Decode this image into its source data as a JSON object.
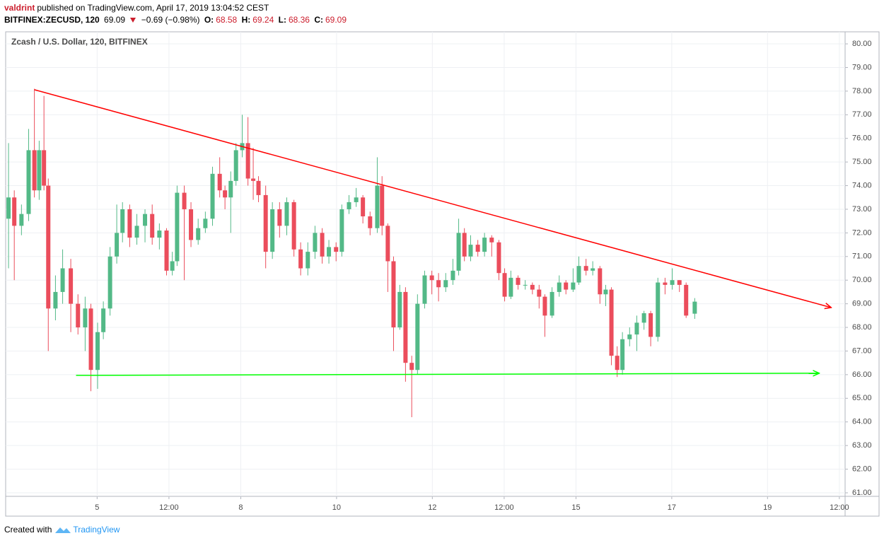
{
  "header": {
    "author": "valdrint",
    "published": "published on TradingView.com, April 17, 2019 13:04:52 CEST",
    "symbol": "BITFINEX:ZECUSD, 120",
    "last": "69.09",
    "change": "−0.69 (−0.98%)",
    "ohlc": [
      {
        "label": "O:",
        "value": "68.58"
      },
      {
        "label": "H:",
        "value": "69.24"
      },
      {
        "label": "L:",
        "value": "68.36"
      },
      {
        "label": "C:",
        "value": "69.09"
      }
    ]
  },
  "chart_data": {
    "type": "candlestick",
    "legend": "Zcash / U.S. Dollar, 120, BITFINEX",
    "up_color": "#53b987",
    "down_color": "#eb4d5c",
    "grid": true,
    "xlim": [
      3.09,
      20.62
    ],
    "ylim": [
      60.85,
      80.51
    ],
    "xticks": [
      5,
      {
        "value": 6.5,
        "label": "12:00"
      },
      8,
      10,
      12,
      {
        "value": 13.5,
        "label": "12:00"
      },
      15,
      17,
      19,
      {
        "value": 20.5,
        "label": "12:00"
      }
    ],
    "yticks": [
      {
        "value": 61,
        "label": "61.00"
      },
      {
        "value": 62,
        "label": "62.00"
      },
      {
        "value": 63,
        "label": "63.00"
      },
      {
        "value": 64,
        "label": "64.00"
      },
      {
        "value": 65,
        "label": "65.00"
      },
      {
        "value": 66,
        "label": "66.00"
      },
      {
        "value": 67,
        "label": "67.00"
      },
      {
        "value": 68,
        "label": "68.00"
      },
      {
        "value": 69,
        "label": "69.00"
      },
      {
        "value": 70,
        "label": "70.00"
      },
      {
        "value": 71,
        "label": "71.00"
      },
      {
        "value": 72,
        "label": "72.00"
      },
      {
        "value": 73,
        "label": "73.00"
      },
      {
        "value": 74,
        "label": "74.00"
      },
      {
        "value": 75,
        "label": "75.00"
      },
      {
        "value": 76,
        "label": "76.00"
      },
      {
        "value": 77,
        "label": "77.00"
      },
      {
        "value": 78,
        "label": "78.00"
      },
      {
        "value": 79,
        "label": "79.00"
      },
      {
        "value": 80,
        "label": "80.00"
      }
    ],
    "x": [
      3.15,
      3.27,
      3.42,
      3.57,
      3.69,
      3.79,
      3.89,
      3.98,
      4.13,
      4.28,
      4.45,
      4.6,
      4.75,
      4.87,
      5.01,
      5.13,
      5.27,
      5.41,
      5.53,
      5.68,
      5.83,
      6.0,
      6.15,
      6.3,
      6.45,
      6.57,
      6.67,
      6.82,
      6.96,
      7.11,
      7.26,
      7.41,
      7.56,
      7.67,
      7.79,
      7.9,
      8.03,
      8.15,
      8.26,
      8.37,
      8.52,
      8.66,
      8.81,
      8.96,
      9.11,
      9.25,
      9.4,
      9.55,
      9.7,
      9.84,
      9.99,
      10.11,
      10.26,
      10.41,
      10.55,
      10.7,
      10.85,
      10.95,
      11.07,
      11.19,
      11.32,
      11.44,
      11.57,
      11.69,
      11.84,
      11.99,
      12.13,
      12.28,
      12.43,
      12.55,
      12.67,
      12.8,
      12.95,
      13.09,
      13.24,
      13.39,
      13.51,
      13.64,
      13.79,
      13.94,
      14.09,
      14.23,
      14.35,
      14.5,
      14.65,
      14.79,
      14.94,
      15.06,
      15.21,
      15.35,
      15.5,
      15.62,
      15.74,
      15.86,
      15.97,
      16.12,
      16.27,
      16.42,
      16.56,
      16.71,
      16.86,
      17.01,
      17.16,
      17.3,
      17.48
    ],
    "open": [
      72.6,
      73.5,
      72.3,
      72.8,
      75.5,
      73.8,
      75.5,
      74.0,
      68.8,
      69.5,
      70.5,
      69.0,
      68.0,
      68.8,
      66.2,
      67.8,
      68.8,
      71.0,
      72.0,
      73.0,
      71.8,
      72.3,
      72.8,
      71.8,
      72.1,
      70.4,
      70.8,
      73.7,
      73.0,
      71.7,
      72.2,
      72.6,
      74.5,
      73.8,
      73.5,
      74.2,
      75.5,
      75.8,
      74.3,
      74.2,
      73.6,
      71.2,
      73.0,
      72.3,
      73.3,
      71.3,
      70.5,
      71.2,
      72.0,
      71.0,
      71.4,
      71.2,
      73.0,
      73.3,
      73.5,
      72.7,
      72.2,
      74.0,
      72.3,
      70.8,
      68.0,
      69.5,
      66.5,
      66.2,
      69.0,
      70.2,
      70.0,
      69.7,
      70.0,
      70.4,
      72.0,
      71.0,
      71.5,
      71.2,
      71.8,
      71.6,
      70.3,
      69.3,
      70.1,
      69.8,
      69.8,
      69.6,
      69.3,
      68.5,
      69.5,
      69.9,
      69.6,
      69.9,
      70.6,
      70.4,
      70.5,
      69.4,
      69.6,
      66.8,
      66.2,
      67.5,
      67.7,
      68.2,
      68.6,
      67.6,
      69.9,
      69.8,
      70.0,
      69.8,
      68.58
    ],
    "high": [
      75.8,
      73.8,
      73.2,
      76.4,
      78.1,
      75.9,
      77.8,
      74.3,
      70.2,
      71.3,
      70.9,
      69.4,
      69.3,
      69.0,
      68.2,
      69.1,
      71.4,
      73.2,
      73.3,
      73.2,
      72.8,
      73.0,
      73.2,
      72.4,
      72.2,
      71.2,
      74.0,
      74.0,
      73.3,
      72.6,
      72.9,
      74.8,
      75.2,
      74.0,
      74.6,
      75.8,
      77.0,
      76.9,
      75.6,
      74.4,
      74.0,
      73.3,
      73.3,
      73.5,
      73.4,
      71.6,
      71.6,
      72.3,
      72.2,
      71.7,
      71.6,
      73.2,
      73.6,
      73.9,
      73.6,
      72.9,
      75.2,
      74.4,
      72.4,
      71.0,
      69.8,
      69.7,
      66.8,
      69.4,
      70.4,
      70.4,
      70.3,
      70.3,
      70.9,
      72.6,
      72.2,
      71.9,
      71.7,
      72.0,
      71.9,
      71.7,
      70.5,
      70.4,
      70.2,
      70.0,
      69.9,
      69.8,
      69.4,
      69.7,
      70.2,
      70.0,
      70.5,
      71.0,
      70.9,
      70.8,
      70.6,
      69.8,
      69.7,
      67.2,
      67.8,
      68.0,
      68.5,
      68.7,
      68.7,
      70.1,
      70.1,
      70.5,
      70.0,
      69.9,
      69.24
    ],
    "low": [
      70.5,
      70.0,
      71.9,
      72.5,
      73.5,
      73.4,
      73.8,
      67.0,
      68.3,
      69.0,
      67.8,
      67.7,
      67.0,
      65.3,
      65.4,
      67.5,
      68.5,
      70.7,
      71.6,
      71.4,
      71.5,
      71.6,
      71.5,
      71.3,
      70.2,
      70.2,
      70.6,
      70.0,
      71.4,
      71.5,
      72.0,
      72.3,
      73.5,
      73.0,
      72.0,
      74.0,
      75.2,
      74.0,
      73.4,
      73.3,
      70.5,
      70.9,
      71.8,
      71.9,
      71.0,
      70.2,
      70.2,
      70.9,
      70.7,
      70.7,
      70.8,
      71.0,
      72.8,
      73.1,
      72.4,
      71.9,
      72.0,
      71.9,
      69.5,
      67.0,
      67.9,
      65.7,
      64.2,
      66.0,
      68.8,
      69.4,
      69.1,
      69.5,
      69.8,
      70.2,
      70.8,
      70.8,
      71.0,
      71.0,
      71.0,
      70.0,
      69.1,
      69.2,
      69.6,
      69.6,
      69.4,
      68.8,
      67.6,
      68.4,
      69.3,
      69.4,
      69.5,
      69.8,
      70.2,
      70.2,
      69.0,
      68.9,
      66.4,
      65.9,
      66.0,
      67.2,
      67.0,
      67.9,
      67.2,
      67.4,
      69.4,
      69.6,
      69.5,
      68.4,
      68.36
    ],
    "close": [
      73.5,
      72.3,
      72.8,
      75.5,
      73.8,
      75.5,
      74.0,
      68.8,
      69.5,
      70.5,
      69.0,
      68.0,
      68.8,
      66.2,
      67.8,
      68.8,
      71.0,
      72.0,
      73.0,
      71.8,
      72.3,
      72.8,
      71.8,
      72.1,
      70.4,
      70.8,
      73.7,
      73.0,
      71.7,
      72.2,
      72.6,
      74.5,
      73.8,
      73.5,
      74.2,
      75.5,
      75.8,
      74.3,
      74.2,
      73.6,
      71.2,
      73.0,
      72.3,
      73.3,
      71.3,
      70.5,
      71.2,
      72.0,
      71.0,
      71.4,
      71.2,
      73.0,
      73.3,
      73.5,
      72.7,
      72.2,
      74.0,
      72.3,
      70.8,
      68.0,
      69.5,
      66.5,
      66.2,
      69.0,
      70.2,
      70.0,
      69.7,
      70.0,
      70.4,
      72.0,
      71.0,
      71.5,
      71.2,
      71.8,
      71.6,
      70.3,
      69.3,
      70.1,
      69.8,
      69.8,
      69.6,
      69.3,
      68.5,
      69.5,
      69.9,
      69.6,
      69.9,
      70.6,
      70.4,
      70.5,
      69.4,
      69.6,
      66.8,
      66.2,
      67.5,
      67.7,
      68.2,
      68.6,
      67.6,
      69.9,
      69.8,
      70.0,
      69.8,
      68.5,
      69.09
    ],
    "trendlines": [
      {
        "color": "#ff0000",
        "x": [
          3.69,
          20.33
        ],
        "y": [
          78.06,
          68.84
        ]
      },
      {
        "color": "#00ff00",
        "x": [
          4.56,
          20.08
        ],
        "y": [
          65.97,
          66.06
        ]
      }
    ]
  },
  "footer": {
    "created": "Created with",
    "brand": "TradingView"
  }
}
